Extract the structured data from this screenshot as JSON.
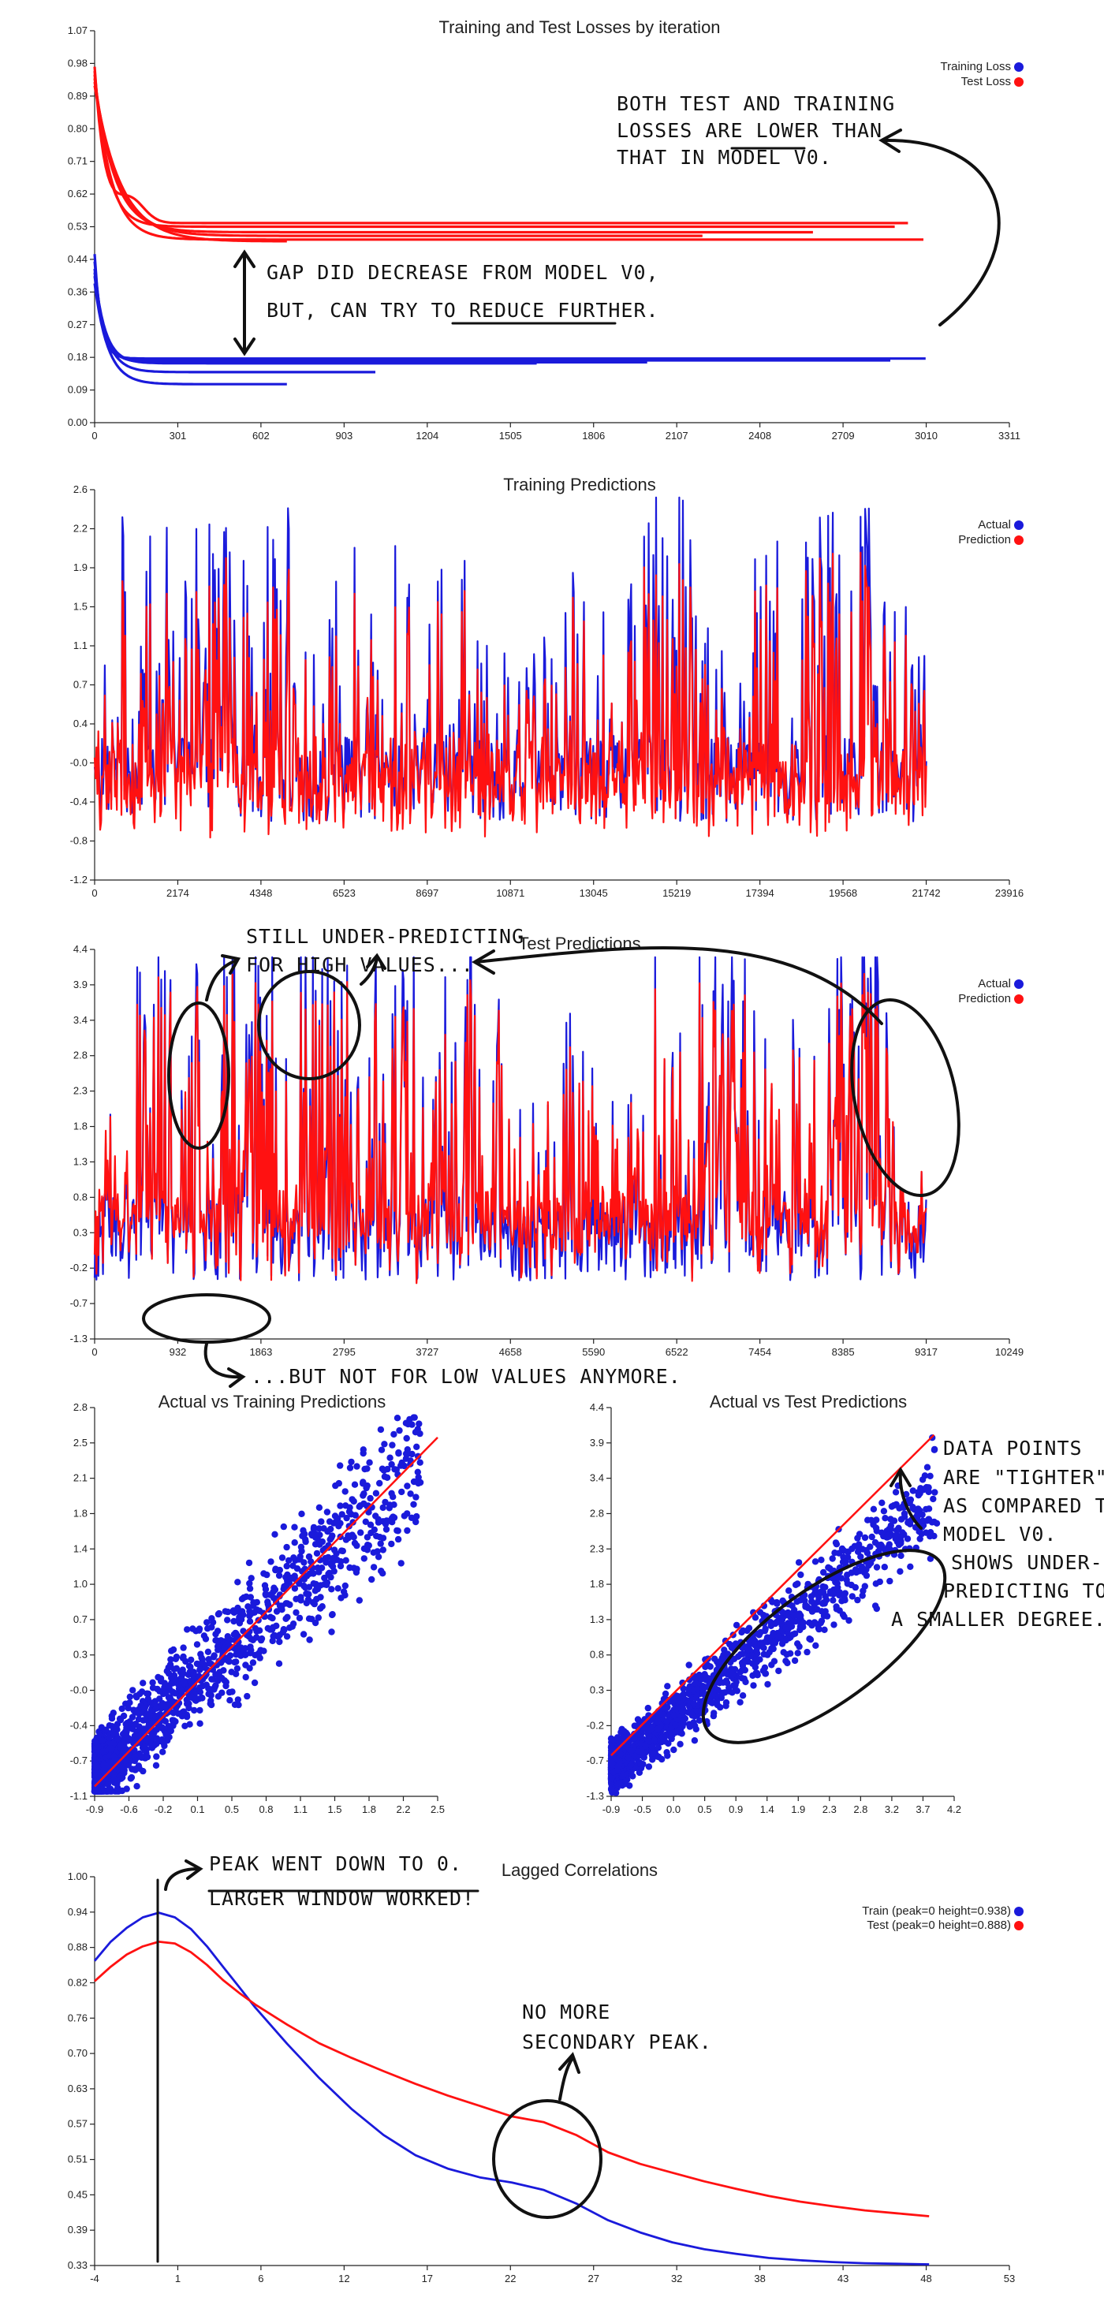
{
  "colors": {
    "train": "#1a1adb",
    "test": "#ff1111",
    "ink": "#111111"
  },
  "chart_data": [
    {
      "type": "line",
      "id": "losses",
      "title": "Training and Test Losses by iteration",
      "xlim": [
        0,
        3311
      ],
      "ylim": [
        0,
        1.07
      ],
      "xticks": [
        "0",
        "301",
        "602",
        "903",
        "1204",
        "1505",
        "1806",
        "2107",
        "2408",
        "2709",
        "3010",
        "3311"
      ],
      "yticks": [
        "0.00",
        "0.09",
        "0.18",
        "0.27",
        "0.36",
        "0.44",
        "0.53",
        "0.62",
        "0.71",
        "0.80",
        "0.89",
        "0.98",
        "1.07"
      ],
      "legend": [
        "Training Loss",
        "Test Loss"
      ],
      "legend_position": "top-right",
      "training_runs": [
        {
          "end": 3010,
          "final": 0.175,
          "start": 0.46
        },
        {
          "end": 2880,
          "final": 0.17,
          "start": 0.44
        },
        {
          "end": 2000,
          "final": 0.165,
          "start": 0.42
        },
        {
          "end": 1600,
          "final": 0.162,
          "start": 0.41
        },
        {
          "end": 1020,
          "final": 0.138,
          "start": 0.4
        },
        {
          "end": 700,
          "final": 0.105,
          "start": 0.38
        }
      ],
      "test_runs": [
        {
          "end": 2950,
          "final": 0.545,
          "start": 0.97
        },
        {
          "end": 2900,
          "final": 0.535,
          "start": 0.96
        },
        {
          "end": 3000,
          "final": 0.5,
          "start": 0.95
        },
        {
          "end": 2600,
          "final": 0.52,
          "start": 0.94
        },
        {
          "end": 2200,
          "final": 0.51,
          "start": 0.93
        },
        {
          "end": 700,
          "final": 0.495,
          "start": 0.92
        }
      ]
    },
    {
      "type": "line",
      "id": "train_pred",
      "title": "Training Predictions",
      "xlim": [
        0,
        23916
      ],
      "ylim": [
        -1.2,
        2.6
      ],
      "xticks": [
        "0",
        "2174",
        "4348",
        "6523",
        "8697",
        "10871",
        "13045",
        "15219",
        "17394",
        "19568",
        "21742",
        "23916"
      ],
      "yticks": [
        "-1.2",
        "-0.8",
        "-0.4",
        "-0.0",
        "0.4",
        "0.7",
        "1.1",
        "1.5",
        "1.9",
        "2.2",
        "2.6"
      ],
      "legend": [
        "Actual",
        "Prediction"
      ],
      "legend_position": "top-right",
      "n_points": 21742
    },
    {
      "type": "line",
      "id": "test_pred",
      "title": "Test Predictions",
      "xlim": [
        0,
        10249
      ],
      "ylim": [
        -1.3,
        4.4
      ],
      "xticks": [
        "0",
        "932",
        "1863",
        "2795",
        "3727",
        "4658",
        "5590",
        "6522",
        "7454",
        "8385",
        "9317",
        "10249"
      ],
      "yticks": [
        "-1.3",
        "-0.7",
        "-0.2",
        "0.3",
        "0.8",
        "1.3",
        "1.8",
        "2.3",
        "2.8",
        "3.4",
        "3.9",
        "4.4"
      ],
      "legend": [
        "Actual",
        "Prediction"
      ],
      "legend_position": "top-right",
      "n_points": 9317
    },
    {
      "type": "scatter",
      "id": "scatter_train",
      "title": "Actual vs Training Predictions",
      "xlim": [
        -0.9,
        2.5
      ],
      "ylim": [
        -1.1,
        2.8
      ],
      "xticks": [
        "-0.9",
        "-0.6",
        "-0.2",
        "0.1",
        "0.5",
        "0.8",
        "1.1",
        "1.5",
        "1.8",
        "2.2",
        "2.5"
      ],
      "yticks": [
        "-1.1",
        "-0.7",
        "-0.4",
        "-0.0",
        "0.3",
        "0.7",
        "1.0",
        "1.4",
        "1.8",
        "2.1",
        "2.5",
        "2.8"
      ],
      "reference_line": [
        [
          -0.9,
          -1.0
        ],
        [
          2.5,
          2.5
        ]
      ]
    },
    {
      "type": "scatter",
      "id": "scatter_test",
      "title": "Actual vs Test Predictions",
      "xlim": [
        -0.9,
        4.2
      ],
      "ylim": [
        -1.3,
        4.4
      ],
      "xticks": [
        "-0.9",
        "-0.5",
        "0.0",
        "0.5",
        "0.9",
        "1.4",
        "1.9",
        "2.3",
        "2.8",
        "3.2",
        "3.7",
        "4.2"
      ],
      "yticks": [
        "-1.3",
        "-0.7",
        "-0.2",
        "0.3",
        "0.8",
        "1.3",
        "1.8",
        "2.3",
        "2.8",
        "3.4",
        "3.9",
        "4.4"
      ],
      "reference_line": [
        [
          -0.9,
          -0.7
        ],
        [
          3.9,
          4.0
        ]
      ]
    },
    {
      "type": "line",
      "id": "lagged",
      "title": "Lagged Correlations",
      "xlim": [
        -4,
        53
      ],
      "ylim": [
        0.33,
        1.0
      ],
      "xticks": [
        "-4",
        "1",
        "6",
        "12",
        "17",
        "22",
        "27",
        "32",
        "38",
        "43",
        "48",
        "53"
      ],
      "yticks": [
        "0.33",
        "0.39",
        "0.45",
        "0.51",
        "0.57",
        "0.63",
        "0.70",
        "0.76",
        "0.82",
        "0.88",
        "0.94",
        "1.00"
      ],
      "legend_position": "top-right",
      "series": [
        {
          "name": "Train (peak=0 height=0.938)",
          "x": [
            -4,
            -3,
            -2,
            -1,
            0,
            1,
            2,
            3,
            4,
            5,
            6,
            8,
            10,
            12,
            14,
            16,
            18,
            20,
            22,
            24,
            26,
            28,
            30,
            32,
            34,
            36,
            38,
            40,
            42,
            44,
            46,
            48
          ],
          "y": [
            0.855,
            0.888,
            0.912,
            0.93,
            0.938,
            0.93,
            0.91,
            0.88,
            0.845,
            0.81,
            0.775,
            0.712,
            0.653,
            0.6,
            0.555,
            0.52,
            0.497,
            0.482,
            0.473,
            0.46,
            0.437,
            0.408,
            0.387,
            0.37,
            0.358,
            0.35,
            0.343,
            0.339,
            0.336,
            0.334,
            0.333,
            0.332
          ]
        },
        {
          "name": "Test (peak=0 height=0.888)",
          "x": [
            -4,
            -3,
            -2,
            -1,
            0,
            1,
            2,
            3,
            4,
            5,
            6,
            8,
            10,
            12,
            14,
            16,
            18,
            20,
            22,
            23,
            24,
            26,
            28,
            30,
            32,
            34,
            36,
            38,
            40,
            42,
            44,
            46,
            48
          ],
          "y": [
            0.82,
            0.845,
            0.866,
            0.88,
            0.888,
            0.885,
            0.87,
            0.848,
            0.822,
            0.8,
            0.78,
            0.745,
            0.713,
            0.688,
            0.665,
            0.643,
            0.623,
            0.605,
            0.587,
            0.582,
            0.577,
            0.555,
            0.525,
            0.505,
            0.49,
            0.475,
            0.462,
            0.45,
            0.44,
            0.432,
            0.425,
            0.42,
            0.415
          ]
        }
      ]
    }
  ],
  "annotations": {
    "losses_note_1": [
      "BOTH TEST AND TRAINING",
      "LOSSES ARE LOWER THAN",
      "THAT IN MODEL V0."
    ],
    "losses_note_2": [
      "GAP DID DECREASE FROM MODEL V0,",
      "BUT, CAN TRY TO REDUCE FURTHER."
    ],
    "test_note_1": [
      "STILL UNDER-PREDICTING",
      "FOR HIGH VALUES..."
    ],
    "test_note_2": "...BUT NOT FOR LOW VALUES ANYMORE.",
    "scatter_note": [
      "DATA POINTS",
      "ARE \"TIGHTER\"",
      "AS COMPARED TO",
      "MODEL V0.",
      "SHOWS UNDER-",
      "PREDICTING TO",
      "A SMALLER DEGREE."
    ],
    "lag_note_1": [
      "PEAK WENT DOWN TO 0.",
      "LARGER WINDOW WORKED!"
    ],
    "lag_note_2": [
      "NO MORE",
      "SECONDARY PEAK."
    ]
  }
}
